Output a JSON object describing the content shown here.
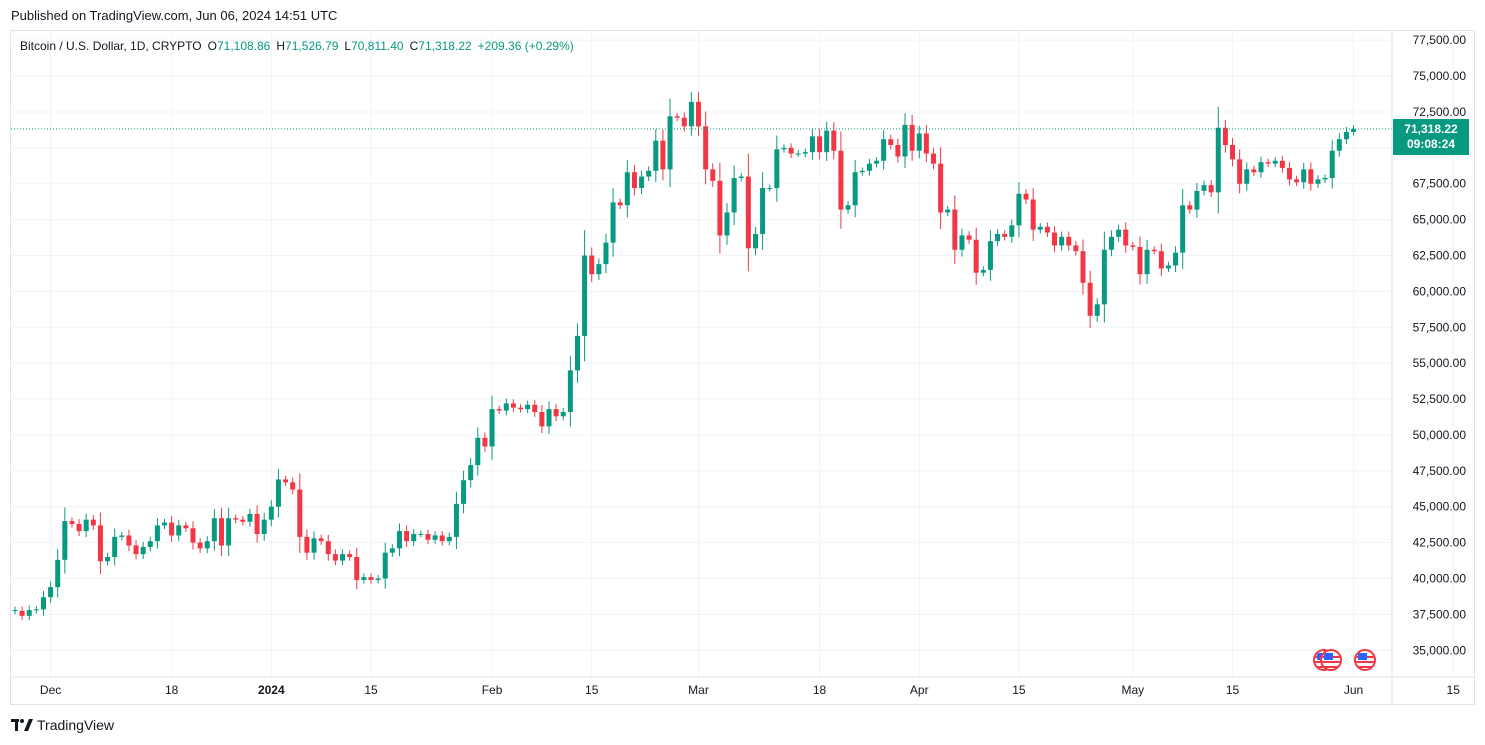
{
  "header": {
    "published": "Published on TradingView.com, Jun 06, 2024 14:51 UTC"
  },
  "legend": {
    "symbol": "Bitcoin / U.S. Dollar, 1D, CRYPTO",
    "o_label": "O",
    "o_value": "71,108.86",
    "h_label": "H",
    "h_value": "71,526.79",
    "l_label": "L",
    "l_value": "70,811.40",
    "c_label": "C",
    "c_value": "71,318.22",
    "change": "+209.36 (+0.29%)"
  },
  "price_tag": {
    "price": "71,318.22",
    "countdown": "09:08:24"
  },
  "brand": {
    "name": "TradingView"
  },
  "colors": {
    "up": "#089981",
    "down": "#f23645",
    "grid": "#f0f3fa"
  },
  "icons": [
    "us-flag-icon",
    "us-flag-icon",
    "tradingview-logo-icon"
  ],
  "chart_data": {
    "type": "candlestick",
    "title": "Bitcoin / U.S. Dollar, 1D, CRYPTO",
    "ylim": [
      33000,
      78000
    ],
    "y_ticks": [
      "77,500.00",
      "75,000.00",
      "72,500.00",
      "70,000.00",
      "67,500.00",
      "65,000.00",
      "62,500.00",
      "60,000.00",
      "57,500.00",
      "55,000.00",
      "52,500.00",
      "50,000.00",
      "47,500.00",
      "45,000.00",
      "42,500.00",
      "40,000.00",
      "37,500.00",
      "35,000.00"
    ],
    "x_ticks": [
      {
        "label": "Dec",
        "date": "2023-12-01",
        "bold": false
      },
      {
        "label": "18",
        "date": "2023-12-18",
        "bold": false
      },
      {
        "label": "2024",
        "date": "2024-01-01",
        "bold": true
      },
      {
        "label": "15",
        "date": "2024-01-15",
        "bold": false
      },
      {
        "label": "Feb",
        "date": "2024-02-01",
        "bold": false
      },
      {
        "label": "15",
        "date": "2024-02-15",
        "bold": false
      },
      {
        "label": "Mar",
        "date": "2024-03-01",
        "bold": false
      },
      {
        "label": "18",
        "date": "2024-03-18",
        "bold": false
      },
      {
        "label": "Apr",
        "date": "2024-04-01",
        "bold": false
      },
      {
        "label": "15",
        "date": "2024-04-15",
        "bold": false
      },
      {
        "label": "May",
        "date": "2024-05-01",
        "bold": false
      },
      {
        "label": "15",
        "date": "2024-05-15",
        "bold": false
      },
      {
        "label": "Jun",
        "date": "2024-06-01",
        "bold": false
      },
      {
        "label": "15",
        "date": "2024-06-15",
        "bold": false
      }
    ],
    "last_price": 71318.22,
    "start_date": "2023-11-26",
    "closes": [
      37800,
      37400,
      37800,
      37850,
      38700,
      39400,
      41300,
      44000,
      43800,
      43300,
      44100,
      43700,
      41200,
      41500,
      42900,
      43000,
      42300,
      41700,
      42200,
      42600,
      43700,
      43900,
      43000,
      43700,
      43500,
      42500,
      42100,
      42600,
      44200,
      42300,
      44200,
      44100,
      43950,
      44500,
      43100,
      44100,
      45000,
      46900,
      46700,
      46200,
      42900,
      41800,
      42800,
      42600,
      41700,
      41250,
      41700,
      41500,
      39900,
      40100,
      39900,
      40000,
      41800,
      42100,
      43300,
      42600,
      43100,
      43100,
      42700,
      43000,
      42600,
      42900,
      45200,
      46850,
      47900,
      49800,
      49200,
      51800,
      51700,
      52200,
      51900,
      51800,
      52100,
      51600,
      50600,
      51800,
      51300,
      51600,
      54500,
      56900,
      62500,
      61200,
      61900,
      63400,
      66200,
      66000,
      68300,
      67200,
      68000,
      68400,
      70500,
      68500,
      72200,
      72100,
      71500,
      73200,
      71500,
      68500,
      67700,
      63900,
      65500,
      67900,
      68000,
      63000,
      64000,
      67200,
      67200,
      69900,
      70000,
      69600,
      69600,
      69700,
      70800,
      69700,
      71200,
      69800,
      65700,
      66000,
      68300,
      68400,
      68900,
      69100,
      70600,
      70200,
      69400,
      71600,
      69800,
      71000,
      69600,
      68900,
      65500,
      65700,
      62900,
      63900,
      63600,
      61300,
      61500,
      63500,
      64000,
      63800,
      64600,
      66800,
      66400,
      64300,
      64500,
      64100,
      63200,
      63800,
      63200,
      62800,
      60600,
      58300,
      59100,
      62900,
      63800,
      64300,
      63200,
      63100,
      61200,
      62900,
      62800,
      61600,
      61800,
      62700,
      66000,
      65700,
      67000,
      67400,
      66900,
      71400,
      70200,
      69200,
      67500,
      68500,
      68300,
      69000,
      68900,
      69100,
      68600,
      67800,
      67600,
      68500,
      67500,
      67800,
      67900,
      69800,
      70600,
      71109,
      71318
    ],
    "opens": [
      37750,
      37750,
      37400,
      37800,
      37850,
      38700,
      39400,
      41300,
      44000,
      43800,
      43300,
      44100,
      43700,
      41200,
      41500,
      42900,
      43000,
      42300,
      41700,
      42200,
      42600,
      43700,
      43900,
      43000,
      43700,
      43500,
      42500,
      42100,
      42600,
      44200,
      42300,
      44200,
      44100,
      43950,
      44500,
      43100,
      44100,
      45000,
      46900,
      46700,
      46200,
      42900,
      41800,
      42800,
      42600,
      41700,
      41250,
      41700,
      41500,
      39900,
      40100,
      39900,
      40000,
      41800,
      42100,
      43300,
      42600,
      43100,
      43100,
      42700,
      43000,
      42600,
      42900,
      45200,
      46850,
      47900,
      49800,
      49200,
      51800,
      51700,
      52200,
      51900,
      51800,
      52100,
      51600,
      50600,
      51800,
      51300,
      51600,
      54500,
      56900,
      62500,
      61200,
      61900,
      63400,
      66200,
      66000,
      68300,
      67200,
      68000,
      68400,
      70500,
      68500,
      72200,
      72100,
      71500,
      73200,
      71500,
      68500,
      67700,
      63900,
      65500,
      67900,
      68000,
      63000,
      64000,
      67200,
      67200,
      69900,
      70000,
      69600,
      69600,
      69700,
      70800,
      69700,
      71200,
      69800,
      65700,
      66000,
      68300,
      68400,
      68900,
      69100,
      70600,
      70200,
      69400,
      71600,
      69800,
      71000,
      69600,
      68900,
      65500,
      65700,
      62900,
      63900,
      63600,
      61300,
      61500,
      63500,
      64000,
      63800,
      64600,
      66800,
      66400,
      64300,
      64500,
      64100,
      63200,
      63800,
      63200,
      62800,
      60600,
      58300,
      59100,
      62900,
      63800,
      64300,
      63200,
      63100,
      61200,
      62900,
      62800,
      61600,
      61800,
      62700,
      66000,
      65700,
      67000,
      67400,
      66900,
      71400,
      70200,
      69200,
      67500,
      68500,
      68300,
      69000,
      68900,
      69100,
      68600,
      67800,
      67600,
      68500,
      67500,
      67800,
      67900,
      69800,
      70600,
      71109
    ]
  }
}
